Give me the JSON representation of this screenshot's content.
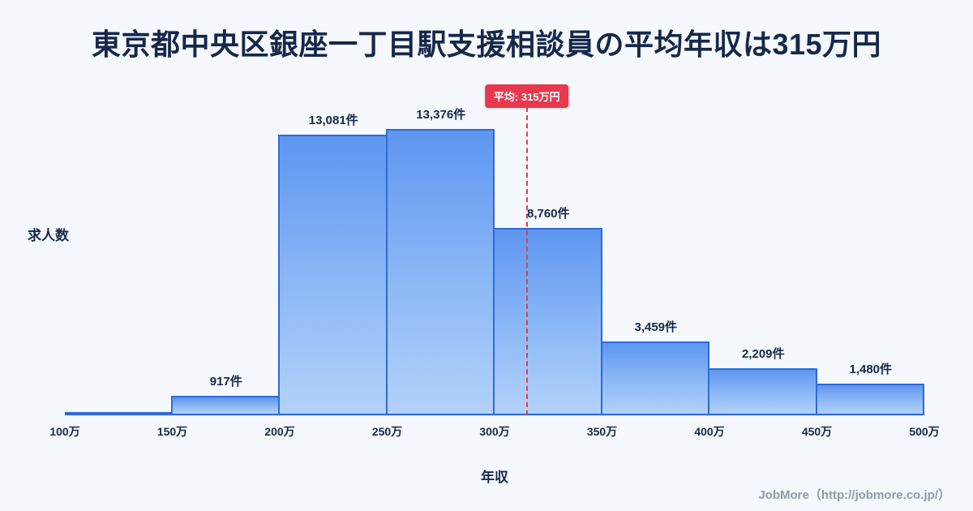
{
  "title": "東京都中央区銀座一丁目駅支援相談員の平均年収は315万円",
  "footer": "JobMore（http://jobmore.co.jp/）",
  "colors": {
    "background": "#f5f8fc",
    "title_text": "#16284a",
    "bar_border": "#2f6ada",
    "bar_gradient_top": "#5e96f0",
    "bar_gradient_bottom": "#b3d2fa",
    "average_red": "#e8384d",
    "footer_text": "#8e9aab"
  },
  "chart_data": {
    "type": "bar",
    "title": "東京都中央区銀座一丁目駅支援相談員の平均年収は315万円",
    "xlabel": "年収",
    "ylabel": "求人数",
    "x_ticks": [
      "100万",
      "150万",
      "200万",
      "250万",
      "300万",
      "350万",
      "400万",
      "450万",
      "500万"
    ],
    "categories": [
      "100万-150万",
      "150万-200万",
      "200万-250万",
      "250万-300万",
      "300万-350万",
      "350万-400万",
      "400万-450万",
      "450万-500万"
    ],
    "values": [
      120,
      917,
      13081,
      13376,
      8760,
      3459,
      2209,
      1480
    ],
    "value_labels": [
      "",
      "917件",
      "13,081件",
      "13,376件",
      "8,760件",
      "3,459件",
      "2,209件",
      "1,480件"
    ],
    "average": {
      "value": 315,
      "label": "平均: 315万円"
    },
    "x_range": [
      100,
      500
    ],
    "ylim": [
      0,
      13700
    ],
    "grid": false,
    "legend": false
  }
}
